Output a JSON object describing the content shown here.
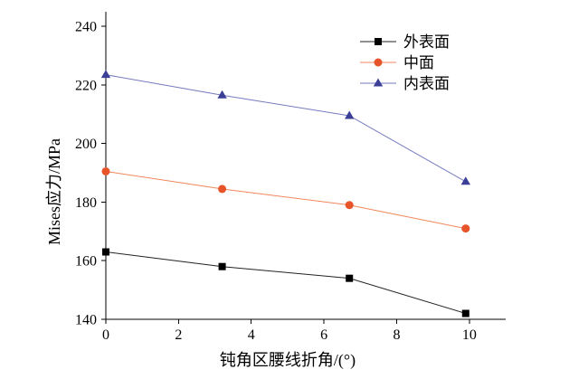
{
  "chart_data": {
    "type": "line",
    "xlabel": "钝角区腰线折角/(°)",
    "ylabel": "Mises应力/MPa",
    "xlim": [
      0,
      11
    ],
    "ylim": [
      140,
      245
    ],
    "xticks": [
      0,
      2,
      4,
      6,
      8,
      10
    ],
    "yticks": [
      140,
      160,
      180,
      200,
      220,
      240
    ],
    "x": [
      0,
      3.2,
      6.7,
      9.9
    ],
    "series": [
      {
        "name": "外表面",
        "values": [
          163,
          158,
          154,
          142
        ],
        "color": "#000000",
        "line_color": "#222222",
        "marker": "square"
      },
      {
        "name": "中面",
        "values": [
          190.5,
          184.5,
          179,
          171
        ],
        "color": "#e8542a",
        "line_color": "#f0865c",
        "marker": "circle"
      },
      {
        "name": "内表面",
        "values": [
          223.5,
          216.5,
          209.5,
          187
        ],
        "color": "#3b4096",
        "line_color": "#7479bd",
        "marker": "triangle"
      }
    ],
    "legend": "top-right",
    "grid": false
  }
}
